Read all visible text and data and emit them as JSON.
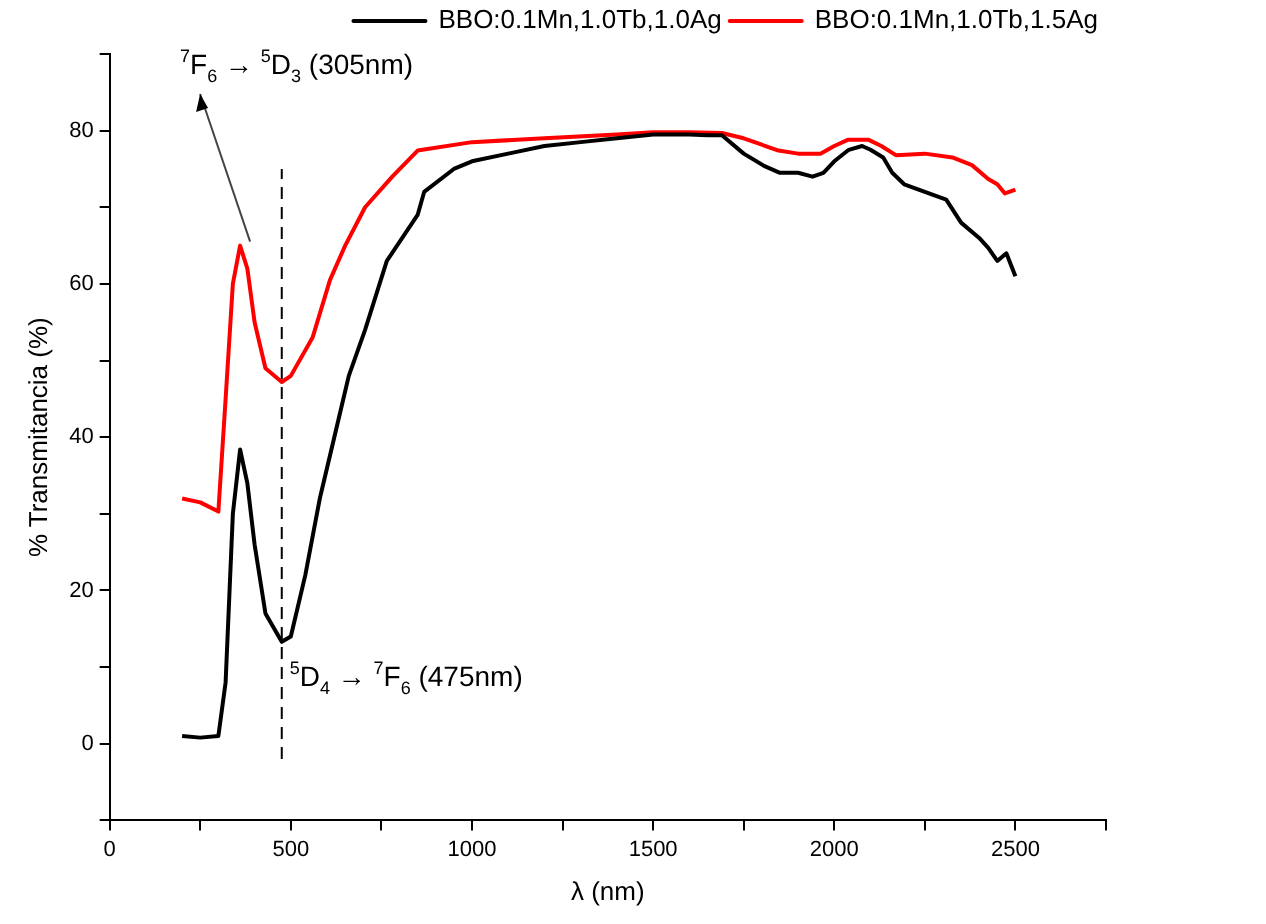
{
  "chart_data": {
    "type": "line",
    "xlabel": "λ (nm)",
    "ylabel": "% Transmitancia (%)",
    "xlim": [
      0,
      2750
    ],
    "xticks": [
      0,
      {
        "value": 250,
        "label": null
      },
      500,
      {
        "value": 750,
        "label": null
      },
      1000,
      {
        "value": 1250,
        "label": null
      },
      1500,
      {
        "value": 1750,
        "label": null
      },
      2000,
      {
        "value": 2250,
        "label": null
      },
      2500,
      {
        "value": 2750,
        "label": null
      }
    ],
    "ylim": [
      -10,
      90
    ],
    "yticks": [
      {
        "value": -10,
        "label": null
      },
      0,
      {
        "value": 10,
        "label": null
      },
      20,
      {
        "value": 30,
        "label": null
      },
      40,
      {
        "value": 50,
        "label": null
      },
      60,
      {
        "value": 70,
        "label": null
      },
      80,
      {
        "value": 90,
        "label": null
      }
    ],
    "legend": "top right",
    "marker": "none",
    "series": [
      {
        "name": "BBO:0.1Mn,1.0Tb,1.0Ag",
        "color": "#000000",
        "x": [
          200,
          250,
          300,
          320,
          340,
          360,
          380,
          400,
          430,
          475,
          500,
          540,
          580,
          620,
          660,
          705,
          765,
          850,
          868,
          950,
          1000,
          1100,
          1200,
          1300,
          1400,
          1500,
          1600,
          1650,
          1690,
          1750,
          1806,
          1850,
          1900,
          1940,
          1970,
          2000,
          2040,
          2077,
          2100,
          2135,
          2160,
          2193,
          2250,
          2309,
          2350,
          2400,
          2425,
          2450,
          2475,
          2500
        ],
        "values": [
          1,
          0.8,
          1,
          8,
          30,
          38.4,
          34,
          26,
          17,
          13.3,
          14,
          22,
          32,
          40,
          48,
          54,
          63,
          69,
          72,
          75,
          76,
          77,
          78,
          78.5,
          79,
          79.5,
          79.5,
          79.4,
          79.4,
          77,
          75.4,
          74.5,
          74.5,
          74,
          74.5,
          76,
          77.5,
          78,
          77.5,
          76.5,
          74.5,
          73,
          72,
          71,
          68,
          66,
          64.7,
          63,
          64,
          61
        ]
      },
      {
        "name": "BBO:0.1Mn,1.0Tb,1.5Ag",
        "color": "#ff0000",
        "x": [
          200,
          250,
          300,
          320,
          340,
          360,
          380,
          400,
          430,
          475,
          500,
          560,
          608,
          650,
          705,
          780,
          850,
          1000,
          1200,
          1400,
          1500,
          1600,
          1690,
          1750,
          1846,
          1900,
          1962,
          2000,
          2037,
          2095,
          2130,
          2170,
          2250,
          2326,
          2380,
          2425,
          2450,
          2471,
          2500
        ],
        "values": [
          32,
          31.5,
          30.3,
          45,
          60,
          65,
          62,
          55,
          49,
          47.2,
          48,
          53,
          60.5,
          65,
          70,
          74,
          77.4,
          78.5,
          79,
          79.5,
          79.8,
          79.8,
          79.7,
          79,
          77.4,
          77,
          77,
          78,
          78.8,
          78.8,
          78,
          76.8,
          77,
          76.5,
          75.5,
          73.7,
          73,
          71.8,
          72.3
        ]
      }
    ],
    "ref_lines": [
      {
        "axis": "x",
        "value": 475,
        "color": "#000000",
        "line_style": "dashed"
      }
    ],
    "annotations": [
      {
        "text": "$^{7}$F$_{6}$ → $^{5}$D$_{3}$ (305nm)",
        "x": 360,
        "y": 65
      },
      {
        "text": "$^{5}$D$_{4}$ → $^{7}$F$_{6}$ (475nm)",
        "x": 475,
        "y": 13.3
      }
    ]
  }
}
